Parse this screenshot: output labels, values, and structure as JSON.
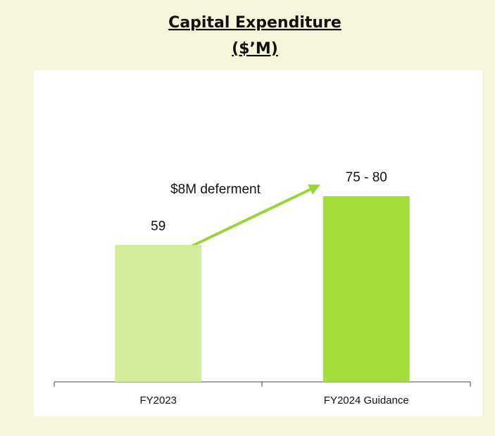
{
  "chart_data": {
    "type": "bar",
    "title": "Capital Expenditure",
    "subtitle": "($’M)",
    "categories": [
      "FY2023",
      "FY2024 Guidance"
    ],
    "values": [
      59,
      80
    ],
    "value_labels": [
      "59",
      "75 - 80"
    ],
    "colors": [
      "#d3ec9b",
      "#a4dc3a"
    ],
    "annotation": "$8M deferment"
  }
}
